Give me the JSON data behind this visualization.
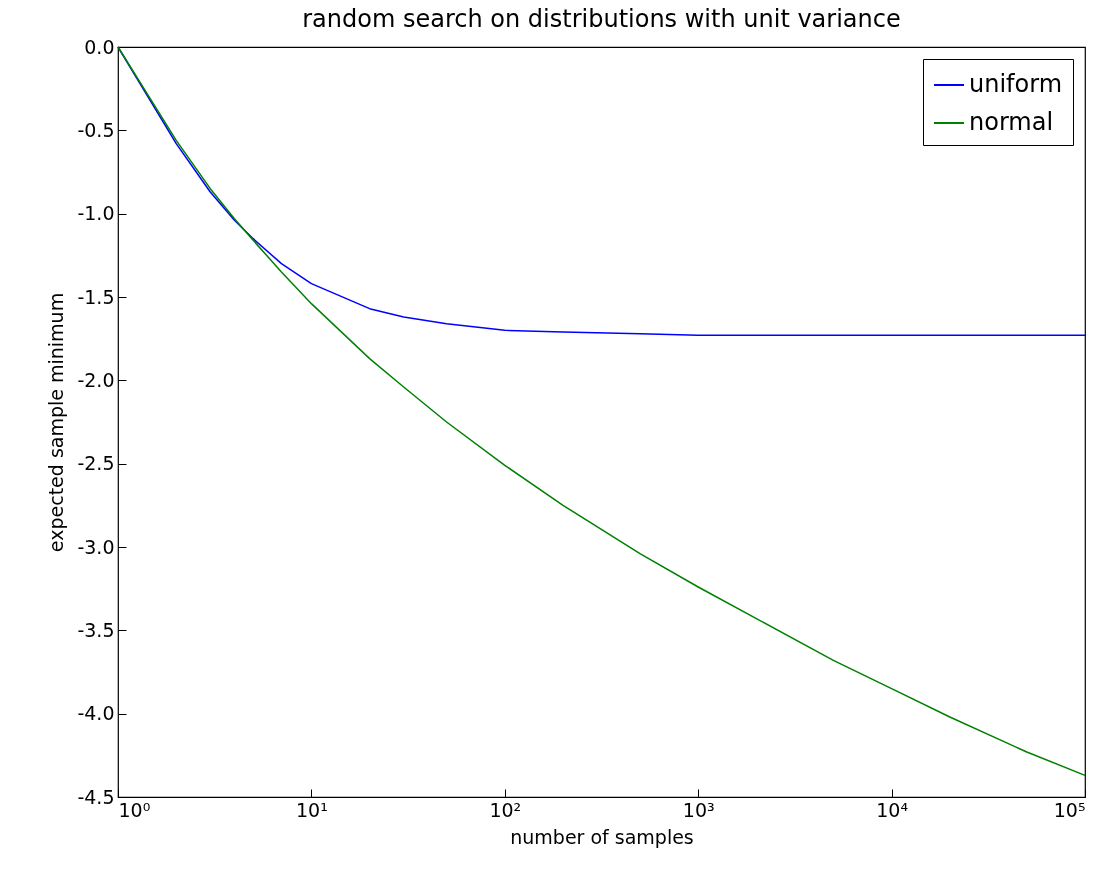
{
  "chart_data": {
    "type": "line",
    "title": "random search on distributions with unit variance",
    "xlabel": "number of samples",
    "ylabel": "expected sample minimum",
    "x": [
      1,
      2,
      3,
      4,
      5,
      7,
      10,
      20,
      30,
      50,
      100,
      200,
      500,
      1000,
      2000,
      5000,
      10000,
      20000,
      50000,
      100000
    ],
    "series": [
      {
        "name": "uniform",
        "color": "#0000ff",
        "values": [
          0,
          -0.58,
          -0.87,
          -1.04,
          -1.15,
          -1.3,
          -1.42,
          -1.57,
          -1.62,
          -1.66,
          -1.7,
          -1.71,
          -1.72,
          -1.73,
          -1.73,
          -1.73,
          -1.73,
          -1.73,
          -1.73,
          -1.73
        ]
      },
      {
        "name": "normal",
        "color": "#008000",
        "values": [
          0,
          -0.56,
          -0.85,
          -1.03,
          -1.16,
          -1.35,
          -1.54,
          -1.87,
          -2.04,
          -2.25,
          -2.51,
          -2.75,
          -3.04,
          -3.24,
          -3.43,
          -3.68,
          -3.85,
          -4.02,
          -4.23,
          -4.37
        ]
      }
    ],
    "log": "x",
    "xlim": [
      1,
      100000
    ],
    "ylim": [
      -4.5,
      0
    ],
    "xticks": [
      {
        "value": 1,
        "label": "10⁰"
      },
      {
        "value": 10,
        "label": "10¹"
      },
      {
        "value": 100,
        "label": "10²"
      },
      {
        "value": 1000,
        "label": "10³"
      },
      {
        "value": 10000,
        "label": "10⁴"
      },
      {
        "value": 100000,
        "label": "10⁵"
      }
    ],
    "yticks": [
      {
        "value": 0,
        "label": "0.0"
      },
      {
        "value": -0.5,
        "label": "-0.5"
      },
      {
        "value": -1,
        "label": "-1.0"
      },
      {
        "value": -1.5,
        "label": "-1.5"
      },
      {
        "value": -2,
        "label": "-2.0"
      },
      {
        "value": -2.5,
        "label": "-2.5"
      },
      {
        "value": -3,
        "label": "-3.0"
      },
      {
        "value": -3.5,
        "label": "-3.5"
      },
      {
        "value": -4,
        "label": "-4.0"
      },
      {
        "value": -4.5,
        "label": "-4.5"
      }
    ],
    "legend": "top right",
    "marker": "none",
    "line_style": "solid"
  }
}
